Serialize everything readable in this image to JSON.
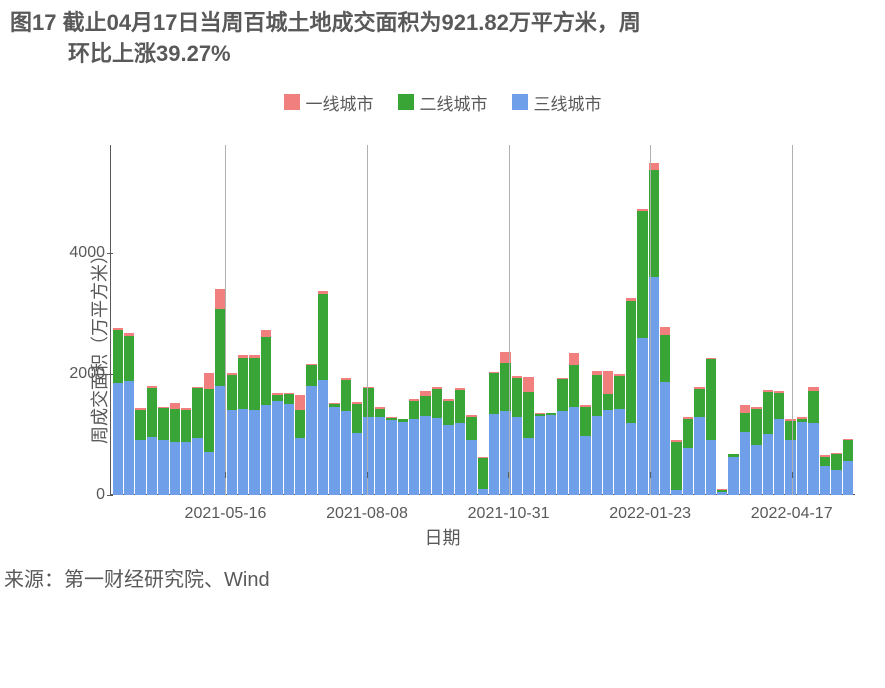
{
  "title_line1": "图17 截止04月17日当周百城土地成交面积为921.82万平方米，周",
  "title_line2": "环比上涨39.27%",
  "legend": {
    "items": [
      {
        "label": "一线城市",
        "color": "#f07f7e"
      },
      {
        "label": "二线城市",
        "color": "#3aa537"
      },
      {
        "label": "三线城市",
        "color": "#6f9fe8"
      }
    ]
  },
  "chart": {
    "type": "stacked-bar",
    "ylabel": "周成交面积（万平方米）",
    "xlabel": "日期",
    "ylim": [
      0,
      5800
    ],
    "yticks": [
      0,
      2000,
      4000
    ],
    "xticks": [
      {
        "pos": 0.155,
        "label": "2021-05-16"
      },
      {
        "pos": 0.345,
        "label": "2021-08-08"
      },
      {
        "pos": 0.535,
        "label": "2021-10-31"
      },
      {
        "pos": 0.725,
        "label": "2022-01-23"
      },
      {
        "pos": 0.915,
        "label": "2022-04-17"
      }
    ],
    "vlines": [
      0.155,
      0.345,
      0.535,
      0.725,
      0.915
    ],
    "background_color": "#ffffff",
    "axis_color": "#595959",
    "vline_color": "#b0b0b0",
    "series_colors": {
      "tier3": "#6f9fe8",
      "tier2": "#3aa537",
      "tier1": "#f07f7e"
    },
    "data": [
      {
        "t3": 1850,
        "t2": 880,
        "t1": 30
      },
      {
        "t3": 1890,
        "t2": 740,
        "t1": 50
      },
      {
        "t3": 900,
        "t2": 500,
        "t1": 30
      },
      {
        "t3": 950,
        "t2": 820,
        "t1": 30
      },
      {
        "t3": 900,
        "t2": 530,
        "t1": 30
      },
      {
        "t3": 870,
        "t2": 550,
        "t1": 100
      },
      {
        "t3": 880,
        "t2": 530,
        "t1": 30
      },
      {
        "t3": 930,
        "t2": 830,
        "t1": 30
      },
      {
        "t3": 700,
        "t2": 1050,
        "t1": 270
      },
      {
        "t3": 1800,
        "t2": 1280,
        "t1": 320
      },
      {
        "t3": 1400,
        "t2": 580,
        "t1": 30
      },
      {
        "t3": 1420,
        "t2": 850,
        "t1": 40
      },
      {
        "t3": 1400,
        "t2": 860,
        "t1": 60
      },
      {
        "t3": 1480,
        "t2": 1130,
        "t1": 120
      },
      {
        "t3": 1550,
        "t2": 100,
        "t1": 30
      },
      {
        "t3": 1500,
        "t2": 160,
        "t1": 30
      },
      {
        "t3": 930,
        "t2": 470,
        "t1": 250
      },
      {
        "t3": 1800,
        "t2": 340,
        "t1": 30
      },
      {
        "t3": 1900,
        "t2": 1420,
        "t1": 50
      },
      {
        "t3": 1450,
        "t2": 50,
        "t1": 20
      },
      {
        "t3": 1380,
        "t2": 520,
        "t1": 30
      },
      {
        "t3": 1020,
        "t2": 480,
        "t1": 40
      },
      {
        "t3": 1280,
        "t2": 480,
        "t1": 30
      },
      {
        "t3": 1280,
        "t2": 140,
        "t1": 30
      },
      {
        "t3": 1240,
        "t2": 30,
        "t1": 10
      },
      {
        "t3": 1200,
        "t2": 50,
        "t1": 10
      },
      {
        "t3": 1250,
        "t2": 300,
        "t1": 30
      },
      {
        "t3": 1300,
        "t2": 330,
        "t1": 80
      },
      {
        "t3": 1270,
        "t2": 480,
        "t1": 30
      },
      {
        "t3": 1150,
        "t2": 400,
        "t1": 30
      },
      {
        "t3": 1180,
        "t2": 550,
        "t1": 30
      },
      {
        "t3": 910,
        "t2": 380,
        "t1": 30
      },
      {
        "t3": 100,
        "t2": 500,
        "t1": 20
      },
      {
        "t3": 1330,
        "t2": 680,
        "t1": 30
      },
      {
        "t3": 1390,
        "t2": 790,
        "t1": 180
      },
      {
        "t3": 1280,
        "t2": 650,
        "t1": 30
      },
      {
        "t3": 930,
        "t2": 770,
        "t1": 250
      },
      {
        "t3": 1300,
        "t2": 40,
        "t1": 10
      },
      {
        "t3": 1320,
        "t2": 30,
        "t1": 10
      },
      {
        "t3": 1380,
        "t2": 530,
        "t1": 30
      },
      {
        "t3": 1450,
        "t2": 700,
        "t1": 200
      },
      {
        "t3": 970,
        "t2": 480,
        "t1": 40
      },
      {
        "t3": 1300,
        "t2": 680,
        "t1": 70
      },
      {
        "t3": 1400,
        "t2": 270,
        "t1": 380
      },
      {
        "t3": 1420,
        "t2": 550,
        "t1": 30
      },
      {
        "t3": 1180,
        "t2": 2030,
        "t1": 40
      },
      {
        "t3": 2600,
        "t2": 2100,
        "t1": 30
      },
      {
        "t3": 3600,
        "t2": 1780,
        "t1": 120
      },
      {
        "t3": 1870,
        "t2": 770,
        "t1": 140
      },
      {
        "t3": 70,
        "t2": 800,
        "t1": 30
      },
      {
        "t3": 770,
        "t2": 490,
        "t1": 30
      },
      {
        "t3": 1280,
        "t2": 470,
        "t1": 40
      },
      {
        "t3": 900,
        "t2": 1340,
        "t1": 30
      },
      {
        "t3": 50,
        "t2": 30,
        "t1": 10
      },
      {
        "t3": 620,
        "t2": 50,
        "t1": 10
      },
      {
        "t3": 1030,
        "t2": 330,
        "t1": 130
      },
      {
        "t3": 820,
        "t2": 600,
        "t1": 40
      },
      {
        "t3": 1000,
        "t2": 700,
        "t1": 40
      },
      {
        "t3": 1250,
        "t2": 430,
        "t1": 30
      },
      {
        "t3": 900,
        "t2": 320,
        "t1": 40
      },
      {
        "t3": 1200,
        "t2": 50,
        "t1": 30
      },
      {
        "t3": 1190,
        "t2": 530,
        "t1": 60
      },
      {
        "t3": 480,
        "t2": 140,
        "t1": 30
      },
      {
        "t3": 400,
        "t2": 280,
        "t1": 10
      },
      {
        "t3": 550,
        "t2": 350,
        "t1": 20
      }
    ]
  },
  "source": "来源：第一财经研究院、Wind"
}
